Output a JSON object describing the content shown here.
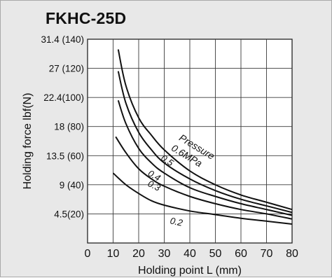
{
  "chart_data": {
    "type": "line",
    "title": "FKHC-25D",
    "xlabel": "Holding point L (mm)",
    "ylabel": "Holding force lbf(N)",
    "xlim": [
      0,
      80
    ],
    "ylim": [
      0,
      140
    ],
    "grid": true,
    "x_ticks": [
      0,
      10,
      20,
      30,
      40,
      50,
      60,
      70,
      80
    ],
    "x_tick_labels": [
      "0",
      "10",
      "20",
      "30",
      "40",
      "50",
      "60",
      "70",
      "80"
    ],
    "y_ticks": [
      20,
      40,
      60,
      80,
      100,
      120,
      140
    ],
    "y_tick_labels": [
      "4.5(20)",
      "9 (40)",
      "13.5 (60)",
      "18 (80)",
      "22.4(100)",
      "27 (120)",
      "31.4 (140)"
    ],
    "legend_title_line1": "Pressure",
    "legend_title_line2": "0.6MPa",
    "series": [
      {
        "name": "0.6MPa",
        "label": "",
        "x": [
          12,
          15,
          20,
          25,
          30,
          40,
          50,
          60,
          70,
          80
        ],
        "values": [
          133,
          108,
          86,
          74,
          64,
          49.5,
          40,
          33,
          28,
          23
        ]
      },
      {
        "name": "0.5",
        "label": "0.5",
        "x": [
          12,
          15,
          20,
          25,
          30,
          40,
          50,
          60,
          70,
          80
        ],
        "values": [
          118,
          96,
          76,
          64,
          55,
          44,
          36,
          30,
          25.5,
          21
        ]
      },
      {
        "name": "0.4",
        "label": "0.4",
        "x": [
          12,
          15,
          20,
          25,
          30,
          40,
          50,
          60,
          70,
          80
        ],
        "values": [
          98,
          82,
          65,
          55,
          48,
          38,
          32,
          27,
          23,
          19
        ]
      },
      {
        "name": "0.3",
        "label": "0.3",
        "x": [
          11,
          15,
          20,
          25,
          30,
          40,
          50,
          60,
          70,
          80
        ],
        "values": [
          73,
          62,
          51,
          44,
          39,
          32,
          27,
          23,
          20,
          16.5
        ]
      },
      {
        "name": "0.2",
        "label": "0.2",
        "x": [
          10,
          15,
          20,
          25,
          30,
          40,
          50,
          60,
          70,
          80
        ],
        "values": [
          48,
          40,
          34,
          29,
          26,
          22,
          19.5,
          17,
          15,
          13
        ]
      }
    ]
  }
}
